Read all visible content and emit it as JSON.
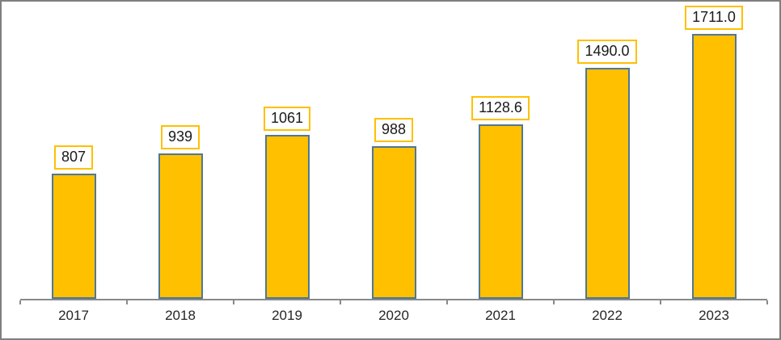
{
  "chart_data": {
    "type": "bar",
    "title": "",
    "xlabel": "",
    "ylabel": "",
    "categories": [
      "2017",
      "2018",
      "2019",
      "2020",
      "2021",
      "2022",
      "2023"
    ],
    "values": [
      807,
      939,
      1061,
      988,
      1128.6,
      1490.0,
      1711.0
    ],
    "labels": [
      "807",
      "939",
      "1061",
      "988",
      "1128.6",
      "1490.0",
      "1711.0"
    ],
    "ylim": [
      0,
      1920
    ],
    "grid": false,
    "legend": null,
    "colors": {
      "bar_fill": "#FFC000",
      "bar_border": "#4F7795",
      "label_box_border": "#FFC000",
      "label_box_bg": "#FFFFFF",
      "label_text": "#1A1A1A",
      "axis_line": "#898989",
      "axis_text": "#262626",
      "frame_border": "#7F7F7F"
    }
  }
}
